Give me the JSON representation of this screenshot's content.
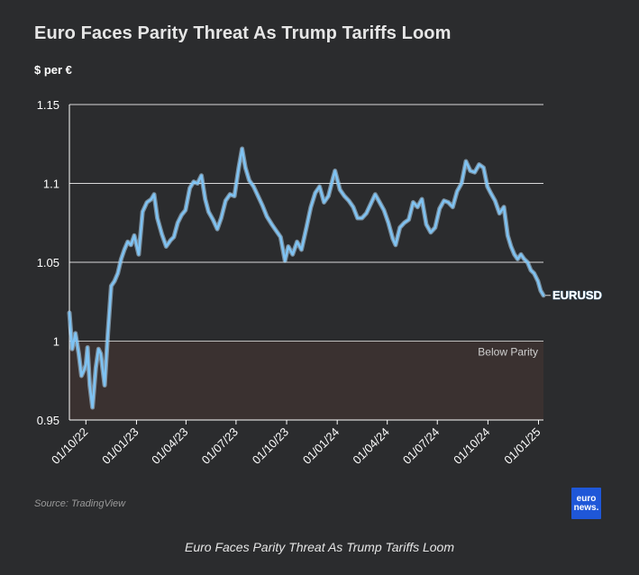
{
  "title": "Euro Faces Parity Threat As Trump Tariffs Loom",
  "unit_label": "$ per €",
  "source": "Source: TradingView",
  "logo": {
    "line1": "euro",
    "line2": "news."
  },
  "caption": "Euro Faces Parity Threat As Trump Tariffs Loom",
  "colors": {
    "background": "#2b2c2e",
    "line": "#7fc3f3",
    "line_glow": "#b6dcf7",
    "parity_band": "#3a3130",
    "grid": "#d9d9d9",
    "logo": "#1f57d8"
  },
  "chart_data": {
    "type": "line",
    "title": "Euro Faces Parity Threat As Trump Tariffs Loom",
    "ylabel": "$ per €",
    "xlabel": "",
    "ylim": [
      0.95,
      1.15
    ],
    "yticks": [
      0.95,
      1,
      1.05,
      1.1,
      1.15
    ],
    "ytick_labels": [
      "0.95",
      "1",
      "1.05",
      "1.1",
      "1.15"
    ],
    "xlim": [
      "2022-09-01",
      "2025-01-10"
    ],
    "xticks": [
      "2022-10-01",
      "2023-01-01",
      "2023-04-01",
      "2023-07-01",
      "2023-10-01",
      "2024-01-01",
      "2024-04-01",
      "2024-07-01",
      "2024-10-01",
      "2025-01-01"
    ],
    "xtick_labels": [
      "01/10/22",
      "01/01/23",
      "01/04/23",
      "01/07/23",
      "01/10/23",
      "01/01/24",
      "01/04/24",
      "01/07/24",
      "01/10/24",
      "01/01/25"
    ],
    "grid": "horizontal",
    "shaded_region": {
      "y_from": 0.95,
      "y_to": 1.0,
      "label": "Below Parity"
    },
    "series": [
      {
        "name": "EURUSD",
        "x": [
          "2022-09-01",
          "2022-09-06",
          "2022-09-12",
          "2022-09-18",
          "2022-09-23",
          "2022-09-28",
          "2022-10-01",
          "2022-10-04",
          "2022-10-08",
          "2022-10-13",
          "2022-10-19",
          "2022-10-24",
          "2022-10-28",
          "2022-11-04",
          "2022-11-10",
          "2022-11-16",
          "2022-11-22",
          "2022-11-28",
          "2022-12-04",
          "2022-12-10",
          "2022-12-16",
          "2022-12-22",
          "2022-12-28",
          "2023-01-05",
          "2023-01-12",
          "2023-01-20",
          "2023-01-28",
          "2023-02-02",
          "2023-02-08",
          "2023-02-16",
          "2023-02-24",
          "2023-03-04",
          "2023-03-10",
          "2023-03-17",
          "2023-03-24",
          "2023-03-31",
          "2023-04-08",
          "2023-04-15",
          "2023-04-22",
          "2023-04-29",
          "2023-05-06",
          "2023-05-12",
          "2023-05-20",
          "2023-05-28",
          "2023-06-04",
          "2023-06-12",
          "2023-06-20",
          "2023-06-28",
          "2023-07-06",
          "2023-07-12",
          "2023-07-18",
          "2023-07-25",
          "2023-08-02",
          "2023-08-10",
          "2023-08-18",
          "2023-08-26",
          "2023-09-04",
          "2023-09-12",
          "2023-09-20",
          "2023-09-28",
          "2023-10-04",
          "2023-10-12",
          "2023-10-20",
          "2023-10-28",
          "2023-11-06",
          "2023-11-14",
          "2023-11-22",
          "2023-11-30",
          "2023-12-08",
          "2023-12-16",
          "2023-12-24",
          "2023-12-28",
          "2024-01-06",
          "2024-01-14",
          "2024-01-22",
          "2024-01-30",
          "2024-02-07",
          "2024-02-15",
          "2024-02-23",
          "2024-03-02",
          "2024-03-10",
          "2024-03-18",
          "2024-03-26",
          "2024-04-03",
          "2024-04-11",
          "2024-04-16",
          "2024-04-24",
          "2024-05-02",
          "2024-05-10",
          "2024-05-18",
          "2024-05-26",
          "2024-06-03",
          "2024-06-11",
          "2024-06-19",
          "2024-06-27",
          "2024-07-05",
          "2024-07-13",
          "2024-07-21",
          "2024-07-29",
          "2024-08-06",
          "2024-08-14",
          "2024-08-22",
          "2024-08-30",
          "2024-09-07",
          "2024-09-15",
          "2024-09-23",
          "2024-09-30",
          "2024-10-06",
          "2024-10-14",
          "2024-10-22",
          "2024-10-30",
          "2024-11-06",
          "2024-11-12",
          "2024-11-18",
          "2024-11-24",
          "2024-11-30",
          "2024-12-06",
          "2024-12-12",
          "2024-12-18",
          "2024-12-24",
          "2024-12-31",
          "2025-01-05",
          "2025-01-10"
        ],
        "values": [
          1.018,
          0.995,
          1.005,
          0.992,
          0.978,
          0.982,
          0.985,
          0.996,
          0.972,
          0.958,
          0.983,
          0.995,
          0.992,
          0.972,
          1.005,
          1.035,
          1.038,
          1.043,
          1.052,
          1.058,
          1.063,
          1.061,
          1.067,
          1.055,
          1.082,
          1.088,
          1.09,
          1.093,
          1.078,
          1.068,
          1.06,
          1.064,
          1.066,
          1.075,
          1.08,
          1.083,
          1.097,
          1.101,
          1.1,
          1.105,
          1.09,
          1.082,
          1.077,
          1.071,
          1.078,
          1.089,
          1.093,
          1.092,
          1.11,
          1.122,
          1.11,
          1.102,
          1.098,
          1.092,
          1.086,
          1.079,
          1.074,
          1.07,
          1.066,
          1.051,
          1.06,
          1.055,
          1.063,
          1.058,
          1.072,
          1.085,
          1.094,
          1.098,
          1.088,
          1.092,
          1.103,
          1.108,
          1.096,
          1.092,
          1.089,
          1.085,
          1.078,
          1.078,
          1.081,
          1.087,
          1.093,
          1.088,
          1.083,
          1.075,
          1.065,
          1.061,
          1.072,
          1.075,
          1.077,
          1.088,
          1.085,
          1.09,
          1.074,
          1.069,
          1.072,
          1.084,
          1.089,
          1.088,
          1.085,
          1.095,
          1.1,
          1.114,
          1.108,
          1.107,
          1.112,
          1.11,
          1.098,
          1.094,
          1.089,
          1.081,
          1.085,
          1.067,
          1.06,
          1.055,
          1.052,
          1.055,
          1.052,
          1.05,
          1.045,
          1.043,
          1.038,
          1.032,
          1.029
        ]
      }
    ]
  }
}
